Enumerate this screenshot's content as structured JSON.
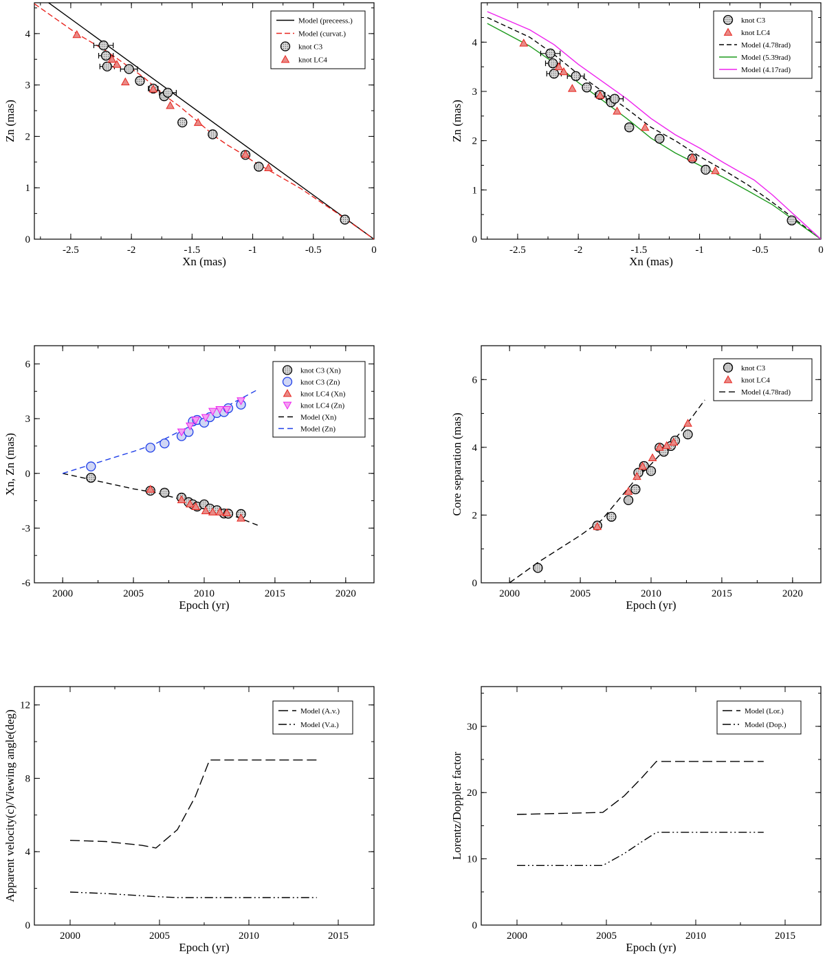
{
  "chart_data": [
    {
      "id": "p1",
      "type": "scatter",
      "xlabel": "Xn (mas)",
      "ylabel": "Zn (mas)",
      "xlim": [
        -2.8,
        0
      ],
      "ylim": [
        0,
        4.6
      ],
      "xticks": [
        -2.5,
        -2,
        -1.5,
        -1,
        -0.5,
        0
      ],
      "xtick_labels": [
        "-2.5",
        "-2",
        "-1.5",
        "-1",
        "-0.5",
        "0"
      ],
      "yticks": [
        0,
        1,
        2,
        3,
        4
      ],
      "ytick_labels": [
        "0",
        "1",
        "2",
        "3",
        "4"
      ],
      "legend": [
        "Model (preceess.)",
        "Model (curvat.)",
        "knot C3",
        "knot LC4"
      ],
      "series": [
        {
          "name": "Model (preceess.)",
          "kind": "line",
          "color": "#000000",
          "dash": "",
          "x": [
            -2.8,
            0
          ],
          "y": [
            4.8,
            0
          ]
        },
        {
          "name": "Model (curvat.)",
          "kind": "line",
          "color": "#e8251f",
          "dash": "8,4",
          "x": [
            -2.8,
            -2.45,
            -2.2,
            -2.05,
            -1.9,
            -1.8,
            -1.7,
            -1.6,
            -1.5,
            -1.4,
            -1.3,
            -1.2,
            -1.1,
            -1.0,
            -0.8,
            -0.6,
            -0.3,
            0
          ],
          "y": [
            4.58,
            4.0,
            3.65,
            3.4,
            3.15,
            2.95,
            2.75,
            2.58,
            2.38,
            2.18,
            1.98,
            1.82,
            1.68,
            1.52,
            1.25,
            0.98,
            0.5,
            0
          ]
        },
        {
          "name": "knot C3",
          "kind": "circle",
          "color": "#000000",
          "x": [
            -2.23,
            -2.21,
            -2.2,
            -2.02,
            -1.93,
            -1.82,
            -1.73,
            -1.7,
            -1.58,
            -1.33,
            -1.06,
            -0.95,
            -0.24
          ],
          "y": [
            3.77,
            3.57,
            3.36,
            3.31,
            3.08,
            2.93,
            2.78,
            2.85,
            2.27,
            2.04,
            1.64,
            1.41,
            0.38
          ],
          "xerr": [
            0.08,
            0.06,
            0.06,
            0.07,
            0.03,
            0.04,
            0.03,
            0.07,
            0.03,
            0.03,
            0.02,
            0.02,
            0.0
          ],
          "yerr": [
            0.03,
            0.03,
            0.03,
            0.03,
            0.03,
            0.03,
            0.03,
            0.03,
            0.03,
            0.03,
            0.03,
            0.03,
            0.02
          ]
        },
        {
          "name": "knot LC4",
          "kind": "triangle",
          "color": "#e8251f",
          "x": [
            -2.45,
            -2.16,
            -2.12,
            -2.05,
            -1.82,
            -1.68,
            -1.45,
            -1.06,
            -0.87
          ],
          "y": [
            3.98,
            3.5,
            3.4,
            3.06,
            2.92,
            2.6,
            2.27,
            1.65,
            1.39
          ]
        }
      ]
    },
    {
      "id": "p2",
      "type": "scatter",
      "xlabel": "Xn (mas)",
      "ylabel": "Zn (mas)",
      "xlim": [
        -2.8,
        0
      ],
      "ylim": [
        0,
        4.8
      ],
      "xticks": [
        -2.5,
        -2,
        -1.5,
        -1,
        -0.5,
        0
      ],
      "xtick_labels": [
        "-2.5",
        "-2",
        "-1.5",
        "-1",
        "-0.5",
        "0"
      ],
      "yticks": [
        0,
        1,
        2,
        3,
        4
      ],
      "ytick_labels": [
        "0",
        "1",
        "2",
        "3",
        "4"
      ],
      "legend": [
        "knot C3",
        "knot LC4",
        "Model (4.78rad)",
        "Model (5.39rad)",
        "Model (4.17rad)"
      ],
      "series": [
        {
          "name": "Model (4.78rad)",
          "kind": "line",
          "color": "#000000",
          "dash": "7,4",
          "x": [
            -2.75,
            -2.4,
            -2.2,
            -2.0,
            -1.8,
            -1.6,
            -1.4,
            -1.2,
            -1.0,
            -0.8,
            -0.6,
            -0.4,
            -0.2,
            0
          ],
          "y": [
            4.5,
            4.1,
            3.75,
            3.35,
            3.0,
            2.65,
            2.27,
            2.0,
            1.68,
            1.4,
            1.1,
            0.75,
            0.38,
            0
          ]
        },
        {
          "name": "Model (5.39rad)",
          "kind": "line",
          "color": "#1c9a1c",
          "dash": "",
          "x": [
            -2.75,
            -2.4,
            -2.2,
            -2.0,
            -1.8,
            -1.6,
            -1.4,
            -1.2,
            -1.0,
            -0.8,
            -0.6,
            -0.4,
            -0.2,
            0
          ],
          "y": [
            4.38,
            3.92,
            3.58,
            3.18,
            2.82,
            2.45,
            2.05,
            1.75,
            1.5,
            1.25,
            0.98,
            0.7,
            0.35,
            0
          ]
        },
        {
          "name": "Model (4.17rad)",
          "kind": "line",
          "color": "#ee22ee",
          "dash": "",
          "x": [
            -2.75,
            -2.4,
            -2.2,
            -2.0,
            -1.8,
            -1.6,
            -1.4,
            -1.2,
            -1.0,
            -0.8,
            -0.55,
            -0.4,
            -0.2,
            0
          ],
          "y": [
            4.62,
            4.25,
            3.95,
            3.55,
            3.2,
            2.85,
            2.45,
            2.12,
            1.85,
            1.55,
            1.2,
            0.9,
            0.45,
            0
          ]
        },
        {
          "name": "knot C3",
          "kind": "circle",
          "color": "#000000",
          "x": [
            -2.23,
            -2.21,
            -2.2,
            -2.02,
            -1.93,
            -1.82,
            -1.73,
            -1.7,
            -1.58,
            -1.33,
            -1.06,
            -0.95,
            -0.24
          ],
          "y": [
            3.77,
            3.57,
            3.36,
            3.31,
            3.08,
            2.93,
            2.78,
            2.85,
            2.27,
            2.04,
            1.64,
            1.41,
            0.38
          ],
          "xerr": [
            0.08,
            0.06,
            0.06,
            0.07,
            0.03,
            0.04,
            0.03,
            0.07,
            0.03,
            0.03,
            0.02,
            0.02,
            0.0
          ],
          "yerr": [
            0.03,
            0.03,
            0.03,
            0.03,
            0.03,
            0.03,
            0.03,
            0.03,
            0.03,
            0.03,
            0.03,
            0.03,
            0.02
          ]
        },
        {
          "name": "knot LC4",
          "kind": "triangle",
          "color": "#e8251f",
          "x": [
            -2.45,
            -2.16,
            -2.12,
            -2.05,
            -1.82,
            -1.68,
            -1.45,
            -1.06,
            -0.87
          ],
          "y": [
            3.98,
            3.5,
            3.4,
            3.06,
            2.92,
            2.6,
            2.27,
            1.65,
            1.39
          ]
        }
      ]
    },
    {
      "id": "p3",
      "type": "scatter",
      "xlabel": "Epoch (yr)",
      "ylabel": "Xn, Zn (mas)",
      "xlim": [
        1998,
        2022
      ],
      "ylim": [
        -6,
        7
      ],
      "xticks": [
        2000,
        2005,
        2010,
        2015,
        2020
      ],
      "xtick_labels": [
        "2000",
        "2005",
        "2010",
        "2015",
        "2020"
      ],
      "yticks": [
        -6,
        -3,
        0,
        3,
        6
      ],
      "ytick_labels": [
        "-6",
        "-3",
        "0",
        "3",
        "6"
      ],
      "legend": [
        "knot C3 (Xn)",
        "knot C3 (Zn)",
        "knot LC4 (Xn)",
        "knot LC4 (Zn)",
        "Model (Xn)",
        "Model (Zn)"
      ],
      "series": [
        {
          "name": "Model (Xn)",
          "kind": "line",
          "color": "#000000",
          "dash": "8,5",
          "x": [
            2000,
            2005,
            2006.5,
            2008,
            2010,
            2012,
            2013.8
          ],
          "y": [
            0,
            -0.85,
            -1.05,
            -1.35,
            -1.75,
            -2.3,
            -2.85
          ]
        },
        {
          "name": "Model (Zn)",
          "kind": "line",
          "color": "#1f3fe8",
          "dash": "8,5",
          "x": [
            2000,
            2005,
            2006.5,
            2008,
            2010,
            2012,
            2013.8
          ],
          "y": [
            0,
            1.2,
            1.6,
            2.2,
            3.0,
            3.85,
            4.6
          ]
        },
        {
          "name": "knot C3 (Xn)",
          "kind": "circle",
          "color": "#000000",
          "x": [
            2002.0,
            2006.2,
            2007.2,
            2008.4,
            2008.9,
            2009.2,
            2009.5,
            2010.0,
            2010.4,
            2010.9,
            2011.4,
            2011.7,
            2012.6
          ],
          "y": [
            -0.24,
            -0.95,
            -1.06,
            -1.33,
            -1.58,
            -1.7,
            -1.82,
            -1.7,
            -1.93,
            -2.02,
            -2.2,
            -2.21,
            -2.23
          ]
        },
        {
          "name": "knot C3 (Zn)",
          "kind": "circle",
          "color": "#1f3fe8",
          "x": [
            2002.0,
            2006.2,
            2007.2,
            2008.4,
            2008.9,
            2009.2,
            2009.5,
            2010.0,
            2010.4,
            2010.9,
            2011.4,
            2011.7,
            2012.6
          ],
          "y": [
            0.38,
            1.41,
            1.64,
            2.04,
            2.27,
            2.85,
            2.93,
            2.78,
            3.08,
            3.31,
            3.36,
            3.57,
            3.77
          ]
        },
        {
          "name": "knot LC4 (Xn)",
          "kind": "triangle",
          "color": "#e8251f",
          "x": [
            2006.2,
            2008.4,
            2009.0,
            2009.4,
            2010.1,
            2010.6,
            2011.1,
            2011.6,
            2012.6
          ],
          "y": [
            -0.87,
            -1.45,
            -1.68,
            -1.82,
            -2.05,
            -2.12,
            -2.12,
            -2.16,
            -2.45
          ]
        },
        {
          "name": "knot LC4 (Zn)",
          "kind": "triangle-down",
          "color": "#ee22ee",
          "x": [
            2008.4,
            2009.0,
            2009.4,
            2010.1,
            2010.6,
            2011.1,
            2011.6,
            2012.6
          ],
          "y": [
            2.27,
            2.6,
            2.92,
            3.06,
            3.4,
            3.5,
            3.5,
            3.98
          ]
        }
      ]
    },
    {
      "id": "p4",
      "type": "scatter",
      "xlabel": "Epoch (yr)",
      "ylabel": "Core separation (mas)",
      "xlim": [
        1998,
        2022
      ],
      "ylim": [
        0,
        7
      ],
      "xticks": [
        2000,
        2005,
        2010,
        2015,
        2020
      ],
      "xtick_labels": [
        "2000",
        "2005",
        "2010",
        "2015",
        "2020"
      ],
      "yticks": [
        0,
        2,
        4,
        6
      ],
      "ytick_labels": [
        "0",
        "2",
        "4",
        "6"
      ],
      "legend": [
        "knot C3",
        "knot LC4",
        "Model (4.78rad)"
      ],
      "series": [
        {
          "name": "Model (4.78rad)",
          "kind": "line",
          "color": "#000000",
          "dash": "9,5",
          "x": [
            2000,
            2002,
            2005,
            2006.5,
            2008,
            2009,
            2010,
            2011,
            2012,
            2013,
            2013.8
          ],
          "y": [
            0,
            0.6,
            1.4,
            1.85,
            2.6,
            3.1,
            3.5,
            3.95,
            4.4,
            4.95,
            5.4
          ]
        },
        {
          "name": "knot C3",
          "kind": "circle",
          "color": "#000000",
          "x": [
            2002.0,
            2006.2,
            2007.2,
            2008.4,
            2008.9,
            2009.1,
            2009.5,
            2010.0,
            2010.6,
            2010.9,
            2011.4,
            2011.7,
            2012.6
          ],
          "y": [
            0.44,
            1.69,
            1.95,
            2.44,
            2.76,
            3.25,
            3.45,
            3.3,
            3.99,
            3.87,
            4.04,
            4.2,
            4.38
          ]
        },
        {
          "name": "knot LC4",
          "kind": "triangle",
          "color": "#e8251f",
          "x": [
            2006.2,
            2008.4,
            2009.0,
            2009.4,
            2010.1,
            2010.6,
            2011.1,
            2011.6,
            2012.6
          ],
          "y": [
            1.66,
            2.7,
            3.14,
            3.44,
            3.69,
            4.0,
            4.05,
            4.15,
            4.71
          ]
        }
      ]
    },
    {
      "id": "p5",
      "type": "line",
      "xlabel": "Epoch (yr)",
      "ylabel": "Apparent velocity(c)/Viewing angle(deg)",
      "xlim": [
        1998,
        2017
      ],
      "ylim": [
        0,
        13
      ],
      "xticks": [
        2000,
        2005,
        2010,
        2015
      ],
      "xtick_labels": [
        "2000",
        "2005",
        "2010",
        "2015"
      ],
      "yticks": [
        0,
        4,
        8,
        12
      ],
      "ytick_labels": [
        "0",
        "4",
        "8",
        "12"
      ],
      "legend": [
        "Model (A.v.)",
        "Model (V.a.)"
      ],
      "series": [
        {
          "name": "Model (A.v.)",
          "kind": "line",
          "color": "#000000",
          "dash": "14,6",
          "x": [
            2000,
            2002,
            2004,
            2004.8,
            2006,
            2007,
            2007.8,
            2010,
            2013.8
          ],
          "y": [
            4.62,
            4.55,
            4.35,
            4.2,
            5.2,
            7.0,
            9.0,
            9.0,
            9.0
          ]
        },
        {
          "name": "Model (V.a.)",
          "kind": "line",
          "color": "#000000",
          "dash": "12,4,2,4,2,4",
          "x": [
            2000,
            2002,
            2004,
            2004.8,
            2006,
            2007,
            2007.8,
            2010,
            2013.8
          ],
          "y": [
            1.8,
            1.72,
            1.6,
            1.55,
            1.5,
            1.5,
            1.5,
            1.5,
            1.5
          ]
        }
      ]
    },
    {
      "id": "p6",
      "type": "line",
      "xlabel": "Epoch (yr)",
      "ylabel": "Lorentz/Doppler factor",
      "xlim": [
        1998,
        2017
      ],
      "ylim": [
        0,
        36
      ],
      "xticks": [
        2000,
        2005,
        2010,
        2015
      ],
      "xtick_labels": [
        "2000",
        "2005",
        "2010",
        "2015"
      ],
      "yticks": [
        0,
        10,
        20,
        30
      ],
      "ytick_labels": [
        "0",
        "10",
        "20",
        "30"
      ],
      "legend": [
        "Model (Lor.)",
        "Model (Dop.)"
      ],
      "series": [
        {
          "name": "Model (Lor.)",
          "kind": "line",
          "color": "#000000",
          "dash": "14,6",
          "x": [
            2000,
            2004.8,
            2006,
            2007,
            2007.8,
            2010,
            2013.8
          ],
          "y": [
            16.7,
            17.0,
            19.5,
            22.3,
            24.7,
            24.7,
            24.7
          ]
        },
        {
          "name": "Model (Dop.)",
          "kind": "line",
          "color": "#000000",
          "dash": "12,4,2,4,2,4",
          "x": [
            2000,
            2004.8,
            2006,
            2007,
            2007.8,
            2010,
            2013.8
          ],
          "y": [
            9.0,
            9.0,
            10.8,
            12.6,
            14.0,
            14.0,
            14.0
          ]
        }
      ]
    }
  ]
}
